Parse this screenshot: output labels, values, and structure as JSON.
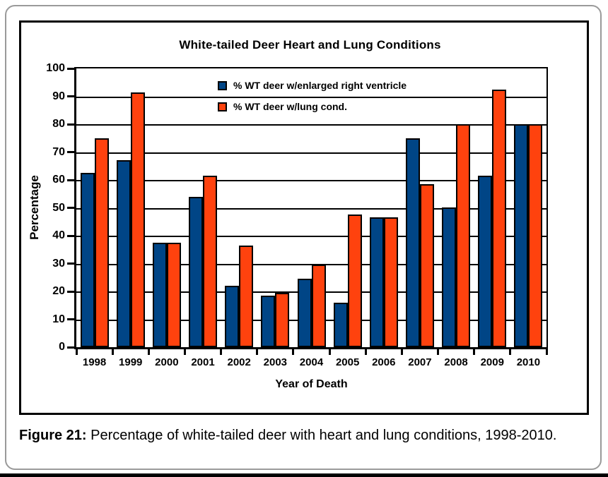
{
  "figure": {
    "caption_label": "Figure 21:",
    "caption_text": " Percentage of white-tailed deer with heart and lung conditions, 1998-2010."
  },
  "chart_data": {
    "type": "bar",
    "title": "White-tailed Deer Heart and Lung Conditions",
    "xlabel": "Year of Death",
    "ylabel": "Percentage",
    "ylim": [
      0,
      100
    ],
    "ytick_step": 10,
    "grid": true,
    "legend_position": "inside-top-center",
    "categories": [
      "1998",
      "1999",
      "2000",
      "2001",
      "2002",
      "2003",
      "2004",
      "2005",
      "2006",
      "2007",
      "2008",
      "2009",
      "2010"
    ],
    "series": [
      {
        "name": "% WT deer w/enlarged right ventricle",
        "color": "#004586",
        "values": [
          62.5,
          67,
          37.5,
          54,
          22,
          18.5,
          24.5,
          16,
          46.5,
          75,
          50,
          61.5,
          80
        ]
      },
      {
        "name": "% WT deer w/lung cond.",
        "color": "#FF420E",
        "values": [
          75,
          91.5,
          37.5,
          61.5,
          36.5,
          19.5,
          29.5,
          47.5,
          46.5,
          58.5,
          80,
          92.5,
          80
        ]
      }
    ],
    "colors": {
      "bar_outline": "#000000",
      "axis": "#000000",
      "grid": "#000000"
    }
  }
}
